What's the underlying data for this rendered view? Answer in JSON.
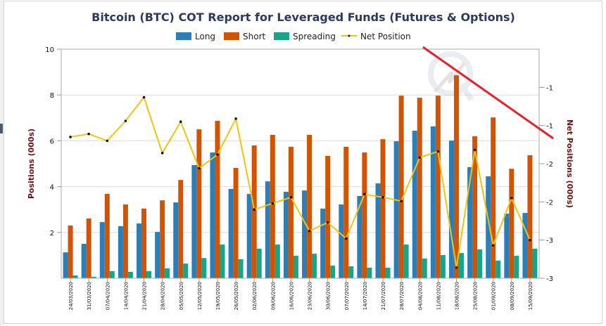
{
  "chart_data": {
    "type": "bar",
    "title": "Bitcoin (BTC) COT Report for Leveraged Funds (Futures & Options)",
    "ylabel": "Positions (000s)",
    "y2label": "Net Positions (000s)",
    "ylim": [
      0,
      10
    ],
    "y2lim": [
      -3,
      0
    ],
    "yticks": [
      "2",
      "4",
      "6",
      "8",
      "10"
    ],
    "yticks_values": [
      2,
      4,
      6,
      8,
      10
    ],
    "y2ticks": [
      "-1",
      "-1",
      "-2",
      "-2",
      "-3",
      "-3"
    ],
    "y2ticks_values": [
      -0.5,
      -1,
      -1.5,
      -2,
      -2.5,
      -3
    ],
    "grid": true,
    "legend_position": "top",
    "categories": [
      "24/03/2020",
      "31/03/2020",
      "07/04/2020",
      "14/04/2020",
      "21/04/2020",
      "28/04/2020",
      "05/05/2020",
      "12/05/2020",
      "19/05/2020",
      "26/05/2020",
      "02/06/2020",
      "09/06/2020",
      "16/06/2020",
      "23/06/2020",
      "30/06/2020",
      "07/07/2020",
      "14/07/2020",
      "21/07/2020",
      "28/07/2020",
      "04/08/2020",
      "11/08/2020",
      "18/08/2020",
      "25/08/2020",
      "01/09/2020",
      "08/09/2020",
      "15/09/2020"
    ],
    "series": [
      {
        "name": "Long",
        "type": "bar",
        "axis": "left",
        "color": "#2a7fba",
        "values": [
          1.13,
          1.5,
          2.45,
          2.27,
          2.39,
          2.02,
          3.31,
          4.94,
          5.49,
          3.9,
          3.68,
          4.23,
          3.77,
          3.83,
          3.04,
          3.22,
          3.59,
          4.14,
          5.98,
          6.44,
          6.63,
          6.01,
          4.85,
          4.45,
          2.82,
          2.85
        ]
      },
      {
        "name": "Short",
        "type": "bar",
        "axis": "left",
        "color": "#d35400",
        "values": [
          2.3,
          2.61,
          3.68,
          3.22,
          3.04,
          3.4,
          4.29,
          6.5,
          6.87,
          4.82,
          5.8,
          6.26,
          5.74,
          6.26,
          5.34,
          5.74,
          5.49,
          6.07,
          7.97,
          7.88,
          7.97,
          8.86,
          6.2,
          7.02,
          4.78,
          5.37
        ]
      },
      {
        "name": "Spreading",
        "type": "bar",
        "axis": "left",
        "color": "#17a589",
        "values": [
          0.12,
          0.06,
          0.31,
          0.28,
          0.31,
          0.43,
          0.64,
          0.88,
          1.47,
          0.83,
          1.29,
          1.47,
          0.98,
          1.07,
          0.55,
          0.52,
          0.46,
          0.46,
          1.47,
          0.86,
          1.01,
          1.1,
          1.26,
          0.77,
          0.98,
          1.29
        ]
      },
      {
        "name": "Net Position",
        "type": "line",
        "axis": "right",
        "color": "#f1c40f",
        "values": [
          -1.15,
          -1.11,
          -1.2,
          -0.94,
          -0.63,
          -1.36,
          -0.95,
          -1.56,
          -1.38,
          -0.91,
          -2.1,
          -2.02,
          -1.94,
          -2.38,
          -2.27,
          -2.48,
          -1.9,
          -1.94,
          -1.99,
          -1.42,
          -1.34,
          -2.86,
          -1.32,
          -2.57,
          -1.95,
          -2.5
        ]
      }
    ]
  },
  "annotation": {
    "color": "#e8202a"
  }
}
